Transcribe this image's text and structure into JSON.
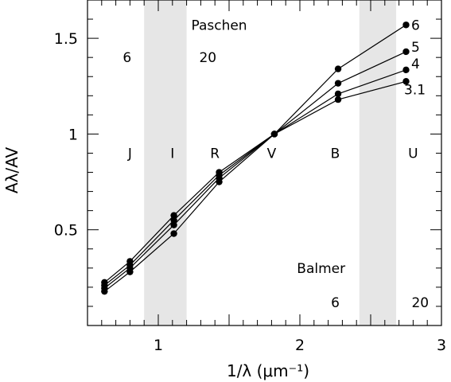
{
  "chart_data": {
    "type": "line",
    "xlabel": "1/λ (μm⁻¹)",
    "ylabel": "Aλ/AV",
    "xlim": [
      0.5,
      3.0
    ],
    "ylim": [
      0.0,
      1.7
    ],
    "xticks": [
      1,
      2,
      3
    ],
    "xtick_labels": [
      "1",
      "2",
      "3"
    ],
    "yticks": [
      0.5,
      1,
      1.5
    ],
    "ytick_labels": [
      "0.5",
      "1",
      "1.5"
    ],
    "shaded_bands": [
      {
        "label": "Paschen",
        "x0": 0.9,
        "x1": 1.2
      },
      {
        "label": "Balmer",
        "x0": 2.42,
        "x1": 2.68
      }
    ],
    "band_letters": [
      {
        "label": "J",
        "x": 0.8
      },
      {
        "label": "I",
        "x": 1.1
      },
      {
        "label": "R",
        "x": 1.4
      },
      {
        "label": "V",
        "x": 1.8
      },
      {
        "label": "B",
        "x": 2.25
      },
      {
        "label": "U",
        "x": 2.8
      }
    ],
    "annotations": [
      {
        "text": "Paschen",
        "x": 1.43,
        "y": 1.57
      },
      {
        "text": "6",
        "x": 0.78,
        "y": 1.4
      },
      {
        "text": "20",
        "x": 1.35,
        "y": 1.4
      },
      {
        "text": "Balmer",
        "x": 2.15,
        "y": 0.3
      },
      {
        "text": "6",
        "x": 2.25,
        "y": 0.12
      },
      {
        "text": "20",
        "x": 2.85,
        "y": 0.12
      }
    ],
    "x": [
      0.62,
      0.8,
      1.11,
      1.43,
      1.82,
      2.27,
      2.75
    ],
    "series": [
      {
        "name": "6",
        "values": [
          0.225,
          0.335,
          0.575,
          0.8,
          1.0,
          1.34,
          1.57
        ]
      },
      {
        "name": "5",
        "values": [
          0.21,
          0.315,
          0.55,
          0.785,
          1.0,
          1.265,
          1.43
        ]
      },
      {
        "name": "4",
        "values": [
          0.195,
          0.3,
          0.525,
          0.77,
          1.0,
          1.21,
          1.335
        ]
      },
      {
        "name": "3.1",
        "values": [
          0.178,
          0.28,
          0.48,
          0.75,
          1.0,
          1.18,
          1.275
        ]
      }
    ]
  }
}
